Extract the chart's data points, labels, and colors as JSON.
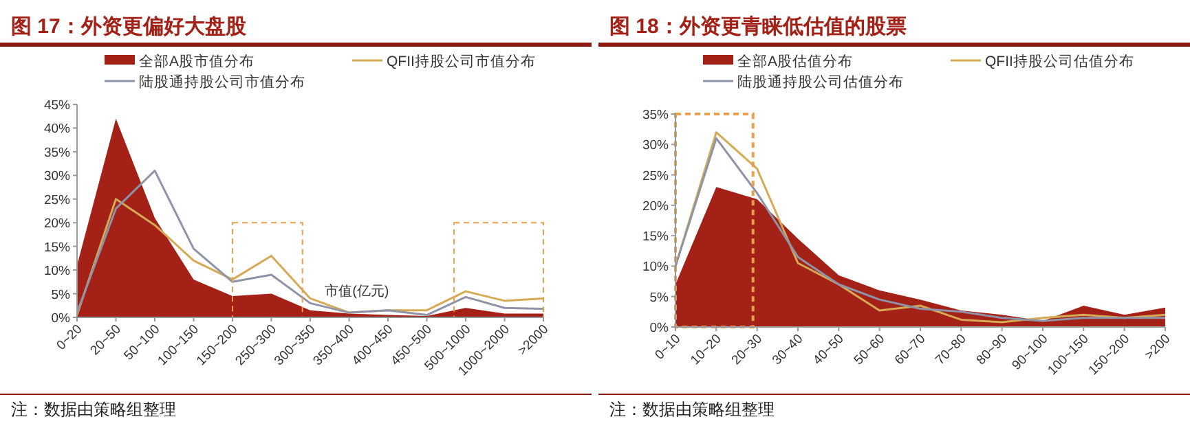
{
  "chart_data": [
    {
      "type": "area",
      "title": "图 17：外资更偏好大盘股",
      "xlabel": "市值(亿元)",
      "categories": [
        "0~20",
        "20~50",
        "50~100",
        "100~150",
        "150~200",
        "250~300",
        "300~350",
        "350~400",
        "400~450",
        "450~500",
        "500~1000",
        "1000~2000",
        ">2000"
      ],
      "series": [
        {
          "name": "全部A股市值分布",
          "color": "#a32116",
          "values": [
            11,
            42,
            21,
            8,
            4.5,
            5,
            1.5,
            0.8,
            0.5,
            0.3,
            2,
            0.8,
            0.8
          ]
        },
        {
          "name": "QFII持股公司市值分布",
          "type": "line",
          "color": "#d4aa55",
          "values": [
            0.5,
            25,
            19.5,
            12,
            8,
            13,
            4,
            1,
            1.5,
            1.5,
            5.5,
            3.5,
            4
          ]
        },
        {
          "name": "陆股通持股公司市值分布",
          "type": "line",
          "color": "#8e93a8",
          "values": [
            1,
            23,
            31,
            14.5,
            7.5,
            9,
            3,
            1,
            1.5,
            0.5,
            4.3,
            2,
            1.8
          ]
        }
      ],
      "ylim": [
        0,
        45
      ],
      "yticks": [
        {
          "value": 0,
          "label": "0%"
        },
        {
          "value": 5,
          "label": "5%"
        },
        {
          "value": 10,
          "label": "10%"
        },
        {
          "value": 15,
          "label": "15%"
        },
        {
          "value": 20,
          "label": "20%"
        },
        {
          "value": 25,
          "label": "25%"
        },
        {
          "value": 30,
          "label": "30%"
        },
        {
          "value": 35,
          "label": "35%"
        },
        {
          "value": 40,
          "label": "40%"
        },
        {
          "value": 45,
          "label": "45%"
        }
      ],
      "legend": "top",
      "grid": false,
      "annotations": [
        "注：数据由策略组整理"
      ]
    },
    {
      "type": "area",
      "title": "图 18：外资更青睐低估值的股票",
      "categories": [
        "0~10",
        "10~20",
        "20~30",
        "30~40",
        "40~50",
        "50~60",
        "60~70",
        "70~80",
        "80~90",
        "90~100",
        "100~150",
        "150~200",
        ">200"
      ],
      "series": [
        {
          "name": "全部A股估值分布",
          "color": "#a32116",
          "values": [
            7,
            23,
            21,
            14.5,
            8.5,
            6,
            4.5,
            2.7,
            2,
            1,
            3.5,
            2,
            3.2
          ]
        },
        {
          "name": "QFII持股公司估值分布",
          "type": "line",
          "color": "#d4aa55",
          "values": [
            10,
            32,
            26,
            10.5,
            7,
            2.7,
            3.5,
            1.2,
            0.8,
            1.5,
            2,
            1.5,
            2
          ]
        },
        {
          "name": "陆股通持股公司估值分布",
          "type": "line",
          "color": "#8e93a8",
          "values": [
            10,
            31,
            22,
            11.5,
            7,
            4.5,
            3,
            2.5,
            1.5,
            1,
            1.5,
            1.5,
            1.5
          ]
        }
      ],
      "ylim": [
        0,
        35
      ],
      "yticks": [
        {
          "value": 0,
          "label": "0%"
        },
        {
          "value": 5,
          "label": "5%"
        },
        {
          "value": 10,
          "label": "10%"
        },
        {
          "value": 15,
          "label": "15%"
        },
        {
          "value": 20,
          "label": "20%"
        },
        {
          "value": 25,
          "label": "25%"
        },
        {
          "value": 30,
          "label": "30%"
        },
        {
          "value": 35,
          "label": "35%"
        }
      ],
      "legend": "top",
      "grid": false,
      "annotations": [
        "注：数据由策略组整理"
      ]
    }
  ]
}
